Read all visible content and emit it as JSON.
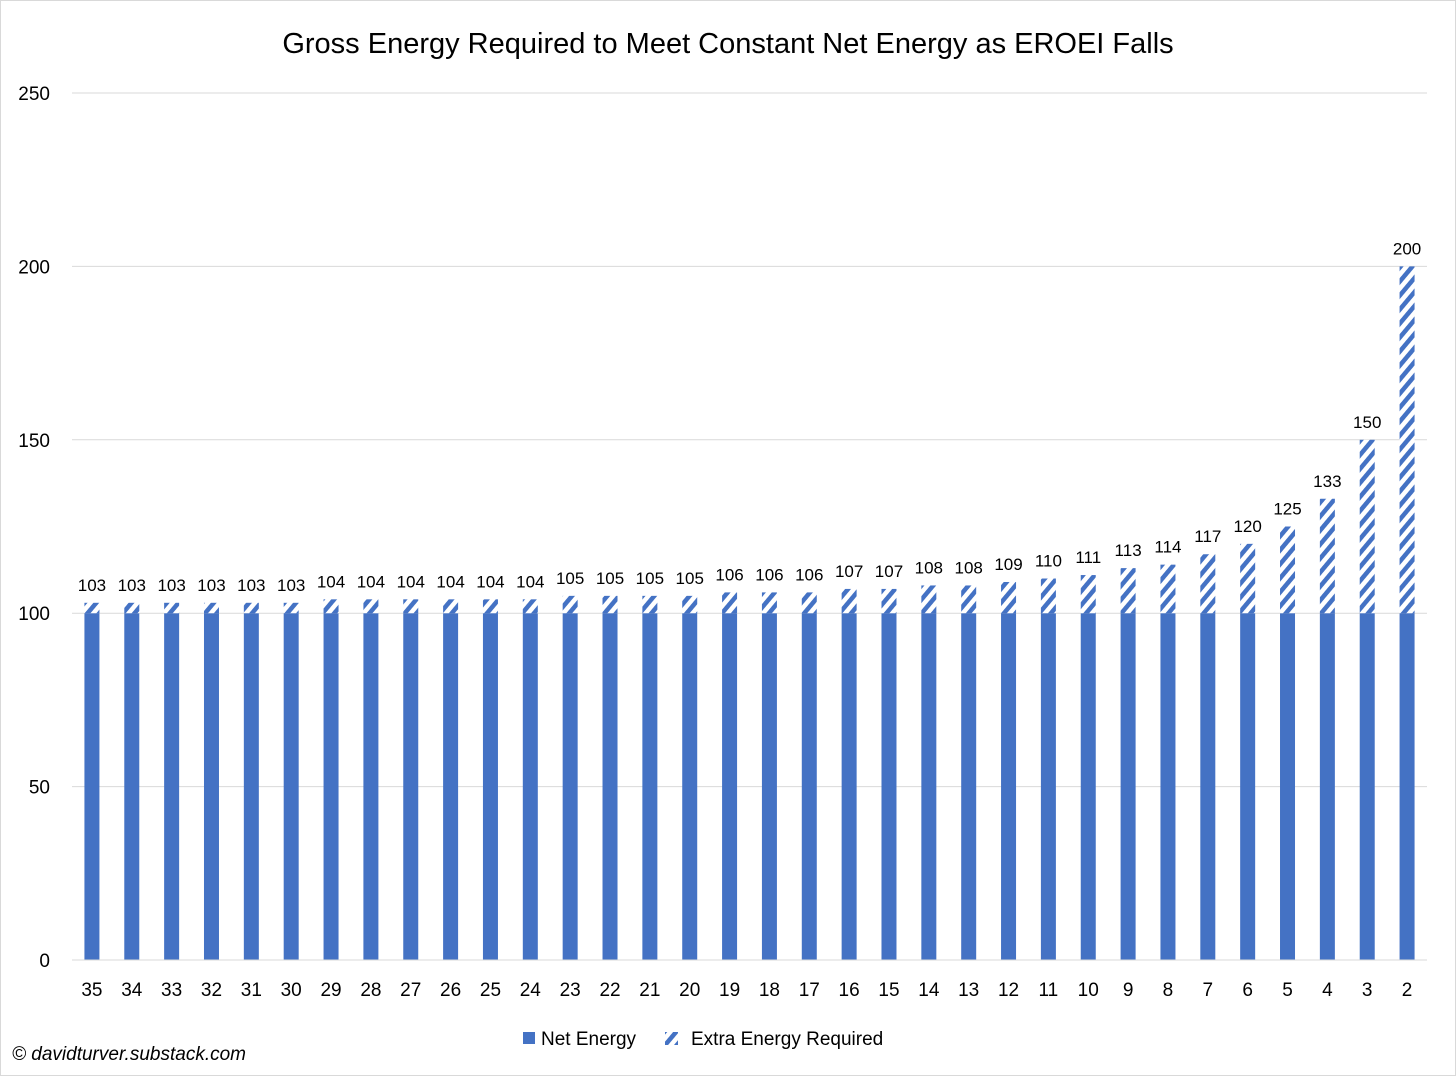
{
  "chart_data": {
    "type": "bar",
    "stacked": true,
    "title": "Gross Energy Required to Meet Constant Net Energy as EROEI Falls",
    "xlabel": "",
    "ylabel": "",
    "ylim": [
      0,
      250
    ],
    "yticks": [
      "0",
      "50",
      "100",
      "150",
      "200",
      "250"
    ],
    "grid": true,
    "legend_position": "bottom",
    "categories": [
      "35",
      "34",
      "33",
      "32",
      "31",
      "30",
      "29",
      "28",
      "27",
      "26",
      "25",
      "24",
      "23",
      "22",
      "21",
      "20",
      "19",
      "18",
      "17",
      "16",
      "15",
      "14",
      "13",
      "12",
      "11",
      "10",
      "9",
      "8",
      "7",
      "6",
      "5",
      "4",
      "3",
      "2"
    ],
    "series": [
      {
        "name": "Net Energy",
        "color": "#4472C4",
        "pattern": "solid",
        "values": [
          100,
          100,
          100,
          100,
          100,
          100,
          100,
          100,
          100,
          100,
          100,
          100,
          100,
          100,
          100,
          100,
          100,
          100,
          100,
          100,
          100,
          100,
          100,
          100,
          100,
          100,
          100,
          100,
          100,
          100,
          100,
          100,
          100,
          100
        ]
      },
      {
        "name": "Extra Energy Required",
        "color": "#4472C4",
        "pattern": "diagonal-stripes",
        "values": [
          3,
          3,
          3,
          3,
          3,
          3,
          4,
          4,
          4,
          4,
          4,
          4,
          5,
          5,
          5,
          5,
          6,
          6,
          6,
          7,
          7,
          8,
          8,
          9,
          10,
          11,
          13,
          14,
          17,
          20,
          25,
          33,
          50,
          100
        ]
      }
    ],
    "total_labels": [
      "103",
      "103",
      "103",
      "103",
      "103",
      "103",
      "104",
      "104",
      "104",
      "104",
      "104",
      "104",
      "105",
      "105",
      "105",
      "105",
      "106",
      "106",
      "106",
      "107",
      "107",
      "108",
      "108",
      "109",
      "110",
      "111",
      "113",
      "114",
      "117",
      "120",
      "125",
      "133",
      "150",
      "200"
    ]
  },
  "credit": "© davidturver.substack.com"
}
